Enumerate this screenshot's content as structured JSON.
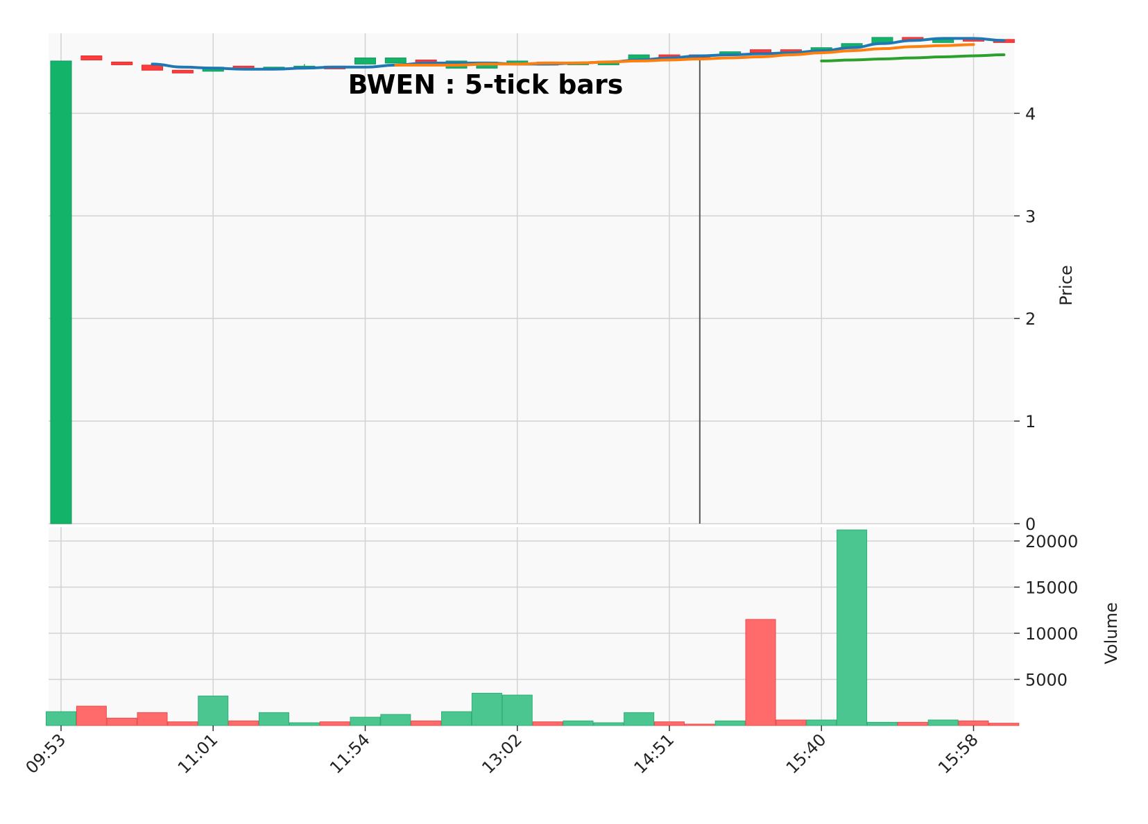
{
  "chart_data": {
    "type": "candlestick",
    "title": "BWEN : 5-tick bars",
    "x_tick_labels": [
      "09:53",
      "11:01",
      "11:54",
      "13:02",
      "14:51",
      "15:40",
      "15:58"
    ],
    "x_tick_bar_index": [
      0,
      5,
      10,
      15,
      20,
      25,
      30
    ],
    "price_axis": {
      "label": "Price",
      "ticks": [
        0,
        1,
        2,
        3,
        4
      ],
      "ylim": [
        0,
        4.78
      ]
    },
    "volume_axis": {
      "label": "Volume",
      "ticks": [
        5000,
        10000,
        15000,
        20000
      ],
      "ylim": [
        0,
        21500
      ]
    },
    "grid": true,
    "colors": {
      "up": "#13b46a",
      "down": "#ff3b3b",
      "volume_up": "#4cc691",
      "volume_down": "#ff6b6b",
      "panel_background": "#f9f9f9",
      "grid": "#d2d2d2",
      "ma_1": "#1f77b4",
      "ma_2": "#ff7f0e",
      "ma_3": "#2ca02c",
      "wick": "#555555"
    },
    "candles": [
      {
        "open": 0.0,
        "high": 4.51,
        "low": 0.0,
        "close": 4.51,
        "volume": 1500
      },
      {
        "open": 4.56,
        "high": 4.56,
        "low": 4.52,
        "close": 4.52,
        "volume": 2100
      },
      {
        "open": 4.5,
        "high": 4.5,
        "low": 4.48,
        "close": 4.48,
        "volume": 800
      },
      {
        "open": 4.47,
        "high": 4.47,
        "low": 4.42,
        "close": 4.42,
        "volume": 1400
      },
      {
        "open": 4.42,
        "high": 4.42,
        "low": 4.41,
        "close": 4.41,
        "volume": 400
      },
      {
        "open": 4.41,
        "high": 4.45,
        "low": 4.41,
        "close": 4.45,
        "volume": 3200
      },
      {
        "open": 4.46,
        "high": 4.46,
        "low": 4.44,
        "close": 4.44,
        "volume": 500
      },
      {
        "open": 4.43,
        "high": 4.45,
        "low": 4.43,
        "close": 4.45,
        "volume": 1400
      },
      {
        "open": 4.45,
        "high": 4.48,
        "low": 4.44,
        "close": 4.46,
        "volume": 300
      },
      {
        "open": 4.46,
        "high": 4.46,
        "low": 4.44,
        "close": 4.44,
        "volume": 400
      },
      {
        "open": 4.48,
        "high": 4.54,
        "low": 4.48,
        "close": 4.54,
        "volume": 900
      },
      {
        "open": 4.49,
        "high": 4.54,
        "low": 4.49,
        "close": 4.54,
        "volume": 1200
      },
      {
        "open": 4.52,
        "high": 4.52,
        "low": 4.48,
        "close": 4.48,
        "volume": 500
      },
      {
        "open": 4.44,
        "high": 4.51,
        "low": 4.44,
        "close": 4.51,
        "volume": 1500
      },
      {
        "open": 4.44,
        "high": 4.5,
        "low": 4.44,
        "close": 4.5,
        "volume": 3500
      },
      {
        "open": 4.48,
        "high": 4.51,
        "low": 4.48,
        "close": 4.51,
        "volume": 3300
      },
      {
        "open": 4.5,
        "high": 4.5,
        "low": 4.47,
        "close": 4.47,
        "volume": 400
      },
      {
        "open": 4.48,
        "high": 4.5,
        "low": 4.48,
        "close": 4.5,
        "volume": 500
      },
      {
        "open": 4.5,
        "high": 4.51,
        "low": 4.5,
        "close": 4.5,
        "volume": 300
      },
      {
        "open": 4.52,
        "high": 4.57,
        "low": 4.52,
        "close": 4.57,
        "volume": 1400
      },
      {
        "open": 4.57,
        "high": 4.57,
        "low": 4.55,
        "close": 4.55,
        "volume": 400
      },
      {
        "open": 4.57,
        "high": 4.57,
        "low": 0.0,
        "close": 4.56,
        "volume": 150
      },
      {
        "open": 4.57,
        "high": 4.6,
        "low": 4.57,
        "close": 4.6,
        "volume": 500
      },
      {
        "open": 4.62,
        "high": 4.62,
        "low": 4.6,
        "close": 4.6,
        "volume": 11500
      },
      {
        "open": 4.62,
        "high": 4.62,
        "low": 4.61,
        "close": 4.61,
        "volume": 600
      },
      {
        "open": 4.61,
        "high": 4.64,
        "low": 4.61,
        "close": 4.64,
        "volume": 600
      },
      {
        "open": 4.64,
        "high": 4.68,
        "low": 4.64,
        "close": 4.68,
        "volume": 21200
      },
      {
        "open": 4.68,
        "high": 4.74,
        "low": 4.68,
        "close": 4.74,
        "volume": 350
      },
      {
        "open": 4.74,
        "high": 4.74,
        "low": 4.72,
        "close": 4.72,
        "volume": 350
      },
      {
        "open": 4.69,
        "high": 4.73,
        "low": 4.69,
        "close": 4.73,
        "volume": 600
      },
      {
        "open": 4.73,
        "high": 4.73,
        "low": 4.72,
        "close": 4.72,
        "volume": 500
      },
      {
        "open": 4.72,
        "high": 4.72,
        "low": 4.69,
        "close": 4.69,
        "volume": 250
      }
    ],
    "moving_averages": [
      {
        "start_index": 3,
        "values": [
          4.48,
          4.45,
          4.44,
          4.43,
          4.43,
          4.44,
          4.45,
          4.45,
          4.47,
          4.49,
          4.49,
          4.49,
          4.48,
          4.48,
          4.49,
          4.5,
          4.52,
          4.54,
          4.56,
          4.57,
          4.58,
          4.59,
          4.61,
          4.64,
          4.68,
          4.71,
          4.73,
          4.73,
          4.71
        ]
      },
      {
        "start_index": 11,
        "values": [
          4.47,
          4.47,
          4.47,
          4.48,
          4.48,
          4.49,
          4.49,
          4.5,
          4.51,
          4.52,
          4.53,
          4.54,
          4.55,
          4.57,
          4.59,
          4.61,
          4.63,
          4.65,
          4.66,
          4.67
        ]
      },
      {
        "start_index": 25,
        "values": [
          4.51,
          4.52,
          4.53,
          4.54,
          4.55,
          4.56,
          4.57
        ]
      }
    ],
    "marker_bar_index": 21
  }
}
